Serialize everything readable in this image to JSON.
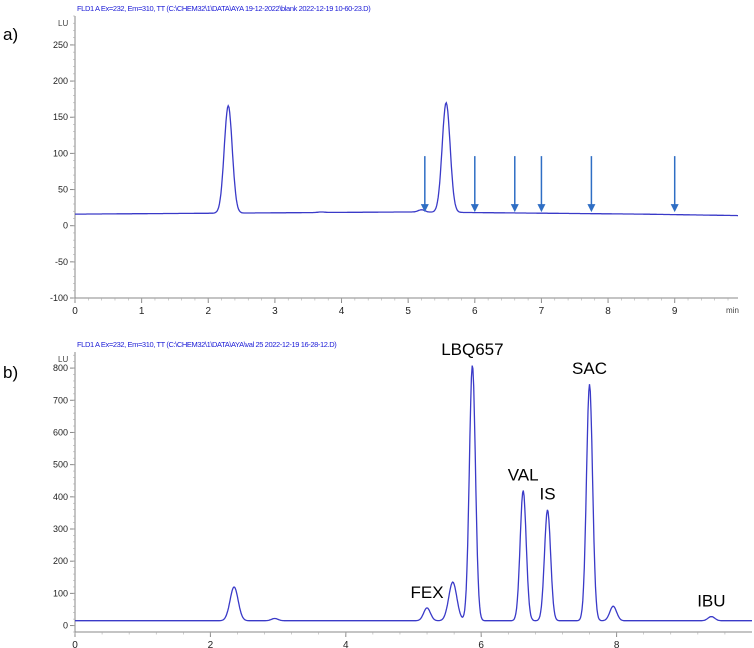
{
  "chart_data": [
    {
      "panel": "a)",
      "type": "line",
      "header": "FLD1 A Ex=232, Em=310, TT (C:\\CHEM32\\1\\DATA\\AYA 19-12-2022\\blank 2022-12-19 10-60-23.D)",
      "y_unit": "LU",
      "x_unit": "min",
      "xlim": [
        0,
        9.95
      ],
      "ylim": [
        -100,
        290
      ],
      "xticks": [
        0,
        1,
        2,
        3,
        4,
        5,
        6,
        7,
        8,
        9
      ],
      "yticks": [
        -100,
        -50,
        0,
        50,
        100,
        150,
        200,
        250
      ],
      "grid": false,
      "color": "#3a3ac8",
      "baseline": [
        [
          0,
          16
        ],
        [
          5,
          19
        ],
        [
          8.5,
          16
        ],
        [
          9.95,
          14
        ]
      ],
      "peaks": [
        {
          "x": 2.3,
          "y": 166
        },
        {
          "x": 5.57,
          "y": 170
        },
        {
          "x": 5.2,
          "y": 22
        },
        {
          "x": 3.7,
          "y": 19
        }
      ],
      "markers": {
        "type": "arrows",
        "color": "#2f6ec4",
        "x": [
          5.25,
          6.0,
          6.6,
          7.0,
          7.75,
          9.0
        ]
      }
    },
    {
      "panel": "b)",
      "type": "line",
      "header": "FLD1 A Ex=232, Em=310, TT (C:\\CHEM32\\1\\DATA\\AYA\\val 25 2022-12-19 16-28-12.D)",
      "y_unit": "LU",
      "xlim": [
        0,
        10
      ],
      "ylim": [
        -20,
        850
      ],
      "xticks": [
        0,
        2,
        4,
        6,
        8
      ],
      "yticks": [
        0,
        100,
        200,
        300,
        400,
        500,
        600,
        700,
        800
      ],
      "grid": false,
      "color": "#3a3ac8",
      "baseline": 15,
      "peaks": [
        {
          "x": 2.35,
          "y": 120,
          "label": ""
        },
        {
          "x": 2.95,
          "y": 22,
          "label": ""
        },
        {
          "x": 5.2,
          "y": 55,
          "label": "FEX"
        },
        {
          "x": 5.58,
          "y": 135,
          "label": ""
        },
        {
          "x": 5.87,
          "y": 810,
          "label": "LBQ657"
        },
        {
          "x": 6.62,
          "y": 420,
          "label": "VAL"
        },
        {
          "x": 6.98,
          "y": 360,
          "label": "IS"
        },
        {
          "x": 7.6,
          "y": 750,
          "label": "SAC"
        },
        {
          "x": 7.95,
          "y": 60,
          "label": ""
        },
        {
          "x": 9.4,
          "y": 28,
          "label": "IBU"
        }
      ]
    }
  ]
}
